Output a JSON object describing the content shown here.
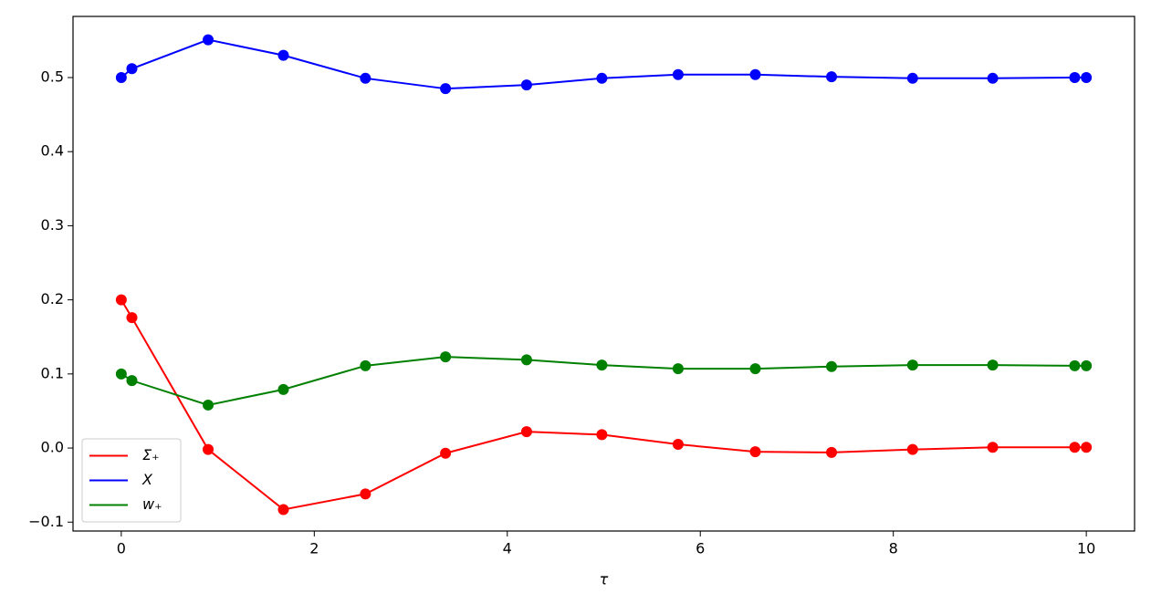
{
  "chart_data": {
    "type": "line",
    "x_label": "τ",
    "x": [
      0,
      0.11,
      0.9,
      1.68,
      2.53,
      3.36,
      4.2,
      4.98,
      5.77,
      6.57,
      7.36,
      8.2,
      9.03,
      9.88,
      10
    ],
    "series": [
      {
        "name": "Σ₊",
        "color": "#ff0000",
        "values": [
          0.2,
          0.176,
          -0.002,
          -0.083,
          -0.062,
          -0.007,
          0.022,
          0.018,
          0.005,
          -0.005,
          -0.006,
          -0.002,
          0.001,
          0.001,
          0.001
        ]
      },
      {
        "name": "X",
        "color": "#0000ff",
        "values": [
          0.5,
          0.512,
          0.551,
          0.53,
          0.499,
          0.485,
          0.49,
          0.499,
          0.504,
          0.504,
          0.501,
          0.499,
          0.499,
          0.5,
          0.5
        ]
      },
      {
        "name": "w₊",
        "color": "#008000",
        "values": [
          0.1,
          0.091,
          0.058,
          0.079,
          0.111,
          0.123,
          0.119,
          0.112,
          0.107,
          0.107,
          0.11,
          0.112,
          0.112,
          0.111,
          0.111
        ]
      }
    ],
    "xlim": [
      -0.5,
      10.5
    ],
    "ylim": [
      -0.112,
      0.5825
    ],
    "xticks": [
      0,
      2,
      4,
      6,
      8,
      10
    ],
    "yticks": [
      {
        "value": -0.1,
        "label": "−0.1"
      },
      {
        "value": 0,
        "label": "0.0"
      },
      0.1,
      0.2,
      0.3,
      0.4,
      0.5
    ],
    "legend": "lower left",
    "grid": false
  }
}
